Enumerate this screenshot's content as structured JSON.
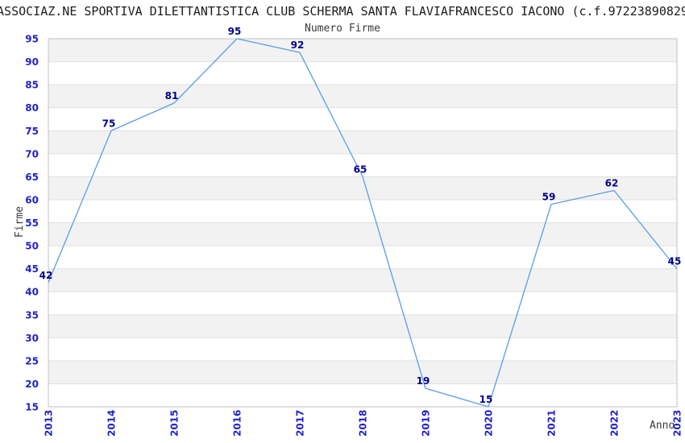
{
  "header": {
    "title": "ASSOCIAZ.NE SPORTIVA DILETTANTISTICA CLUB SCHERMA SANTA FLAVIAFRANCESCO IACONO (c.f.97223890829"
  },
  "chart_data": {
    "type": "line",
    "title": "Numero Firme",
    "xlabel": "Anno",
    "ylabel": "Firme",
    "categories": [
      "2013",
      "2014",
      "2015",
      "2016",
      "2017",
      "2018",
      "2019",
      "2020",
      "2021",
      "2022",
      "2023"
    ],
    "series": [
      {
        "name": "Numero Firme",
        "values": [
          42,
          75,
          81,
          95,
          92,
          65,
          19,
          15,
          59,
          62,
          45
        ]
      }
    ],
    "point_labels": [
      "42",
      "75",
      "81",
      "95",
      "92",
      "65",
      "19",
      "15",
      "59",
      "62",
      "45"
    ],
    "ylim": [
      15,
      95
    ],
    "ytick_step": 5,
    "legend": "none",
    "grid": "horizontal gridlines with alternating gray bands every 5 units",
    "colors": {
      "line": "#5b9ce6",
      "tick_labels": "#2222cc",
      "point_labels": "#00008b",
      "band": "#f2f2f2",
      "gridline": "#e0e0e0",
      "border": "#c0c0c0",
      "text": "#3a3a3a"
    }
  }
}
